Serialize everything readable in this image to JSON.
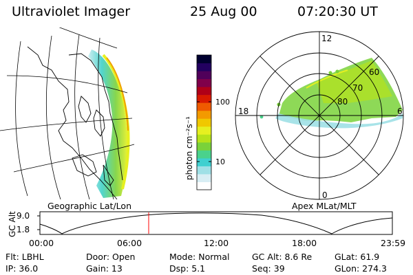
{
  "header": {
    "title": "Ultraviolet Imager",
    "date": "25 Aug 00",
    "time": "07:20:30 UT"
  },
  "map_left": {
    "label": "Geographic Lat/Lon"
  },
  "map_right": {
    "label": "Apex MLat/MLT",
    "mlt_labels": {
      "top": "12",
      "left": "18",
      "right": "6",
      "bottom": "0"
    },
    "lat_labels": [
      "60",
      "70",
      "80"
    ]
  },
  "colorbar": {
    "unit_label": "photon cm⁻²s⁻¹",
    "ticks": [
      "100",
      "10"
    ],
    "colors": [
      "#ffffff",
      "#d8eef4",
      "#9fe0e6",
      "#3fd0d0",
      "#4ad28c",
      "#7ad23a",
      "#b6e21a",
      "#e6f020",
      "#f0c800",
      "#f39a00",
      "#ef5a00",
      "#d81a00",
      "#b00018",
      "#80004a",
      "#50005a",
      "#220060",
      "#000030"
    ]
  },
  "altitude_strip": {
    "ylabel": "GC Alt",
    "y_ticks": [
      "9.0",
      "1.8"
    ],
    "x_ticks": [
      "00:00",
      "06:00",
      "12:00",
      "18:00",
      "23:59"
    ],
    "marker_color": "#ff0000",
    "marker_time": "07:20"
  },
  "status": {
    "filter": "Flt: LBHL",
    "ip": "IP: 36.0",
    "door": "Door: Open",
    "gain": "Gain: 13",
    "mode": "Mode: Normal",
    "dsp": "Dsp:    5.1",
    "gc_alt": "GC Alt: 8.6 Re",
    "seq": "Seq: 39",
    "glat": "GLat:  61.9",
    "glon": "GLon: 274.3"
  }
}
